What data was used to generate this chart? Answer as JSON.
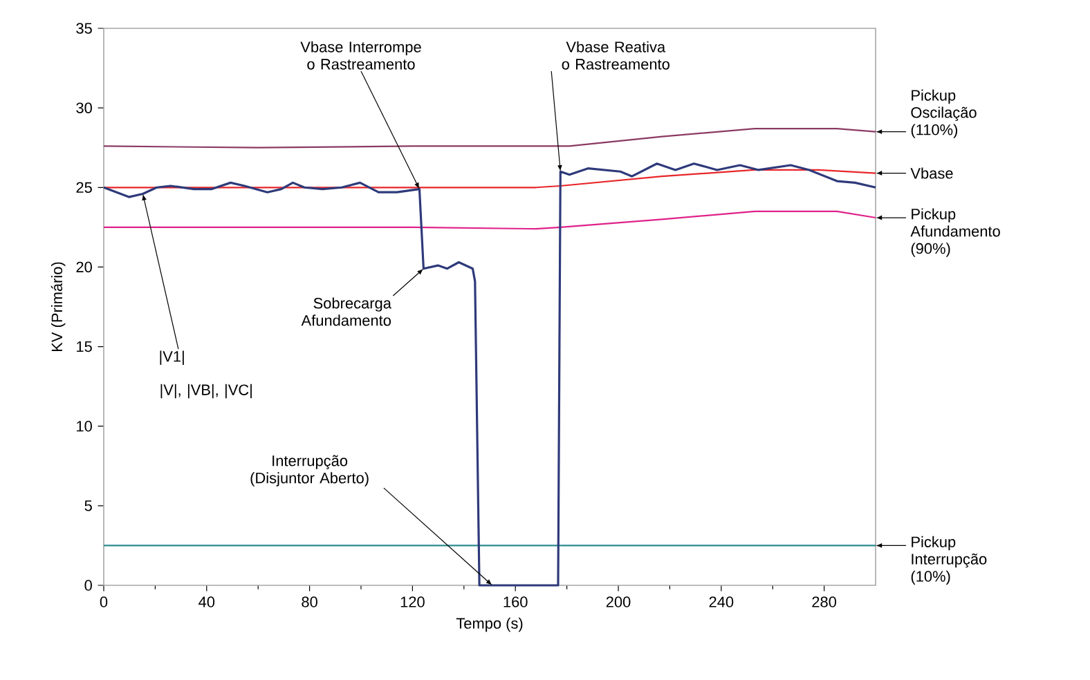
{
  "chart_data": {
    "type": "line",
    "xlabel": "Tempo (s)",
    "ylabel": "KV (Primário)",
    "xlim": [
      0,
      300
    ],
    "ylim": [
      0,
      35
    ],
    "xticks": [
      0,
      40,
      80,
      120,
      160,
      200,
      240,
      280
    ],
    "yticks": [
      0,
      5,
      10,
      15,
      20,
      25,
      30,
      35
    ],
    "grid": false,
    "marker": "none",
    "line_style": "solid",
    "series": [
      {
        "color": "#2e3a7a",
        "x": [
          0,
          9.8,
          15.2,
          20.6,
          26,
          35,
          42,
          49.3,
          54.7,
          63.6,
          69,
          73.5,
          78,
          85,
          92.5,
          99.6,
          106.8,
          114,
          122.7,
          124.3,
          129.9,
          133.5,
          138,
          143.4,
          144.3,
          146,
          176.6,
          177.5,
          181,
          188.2,
          200.8,
          205.3,
          215,
          222.2,
          229.4,
          238.4,
          247.3,
          254.5,
          267,
          274.2,
          285,
          292,
          300
        ],
        "values": [
          25.0,
          24.4,
          24.6,
          25.0,
          25.1,
          24.9,
          24.9,
          25.3,
          25.1,
          24.7,
          24.9,
          25.3,
          25.0,
          24.9,
          25.0,
          25.3,
          24.7,
          24.7,
          24.9,
          19.9,
          20.1,
          19.9,
          20.3,
          19.9,
          19.1,
          0,
          0,
          26.0,
          25.8,
          26.2,
          26.0,
          25.7,
          26.5,
          26.1,
          26.5,
          26.1,
          26.4,
          26.1,
          26.4,
          26.1,
          25.4,
          25.3,
          25.0
        ]
      },
      {
        "name": "Pickup Oscilação (110%)",
        "color": "#8b3a62",
        "x": [
          0,
          60,
          120,
          168,
          181,
          217,
          253,
          285,
          300
        ],
        "values": [
          27.6,
          27.5,
          27.6,
          27.6,
          27.6,
          28.2,
          28.7,
          28.7,
          28.5
        ]
      },
      {
        "name": "Vbase",
        "color": "#e8262a",
        "x": [
          0,
          60,
          120,
          168,
          177.5,
          217,
          252.7,
          277.8,
          300
        ],
        "values": [
          25.0,
          25.0,
          25.0,
          25.0,
          25.1,
          25.7,
          26.1,
          26.1,
          25.9
        ]
      },
      {
        "name": "Pickup Afundamento (90%)",
        "color": "#e0218a",
        "x": [
          0,
          60,
          120,
          168,
          177.5,
          217,
          253,
          285,
          300
        ],
        "values": [
          22.5,
          22.5,
          22.5,
          22.4,
          22.5,
          23.0,
          23.5,
          23.5,
          23.1
        ]
      },
      {
        "name": "Pickup Interrupção (10%)",
        "color": "#2a8a8f",
        "x": [
          0,
          300
        ],
        "values": [
          2.5,
          2.5
        ]
      }
    ],
    "annotations": [
      {
        "text": "Vbase Interrompe o Rastreamento",
        "x": 122.7,
        "y": 24.9
      },
      {
        "text": "Vbase Reativa o Rastreamento",
        "x": 177.5,
        "y": 26.0
      },
      {
        "text": "Sobrecarga Afundamento",
        "x": 124.3,
        "y": 19.9
      },
      {
        "text": "Interrupção (Disjuntor Aberto)",
        "x": 151,
        "y": 0
      },
      {
        "text": "|V1|",
        "x": 15.2,
        "y": 24.6
      },
      "|V|, |VB|, |VC|"
    ]
  }
}
